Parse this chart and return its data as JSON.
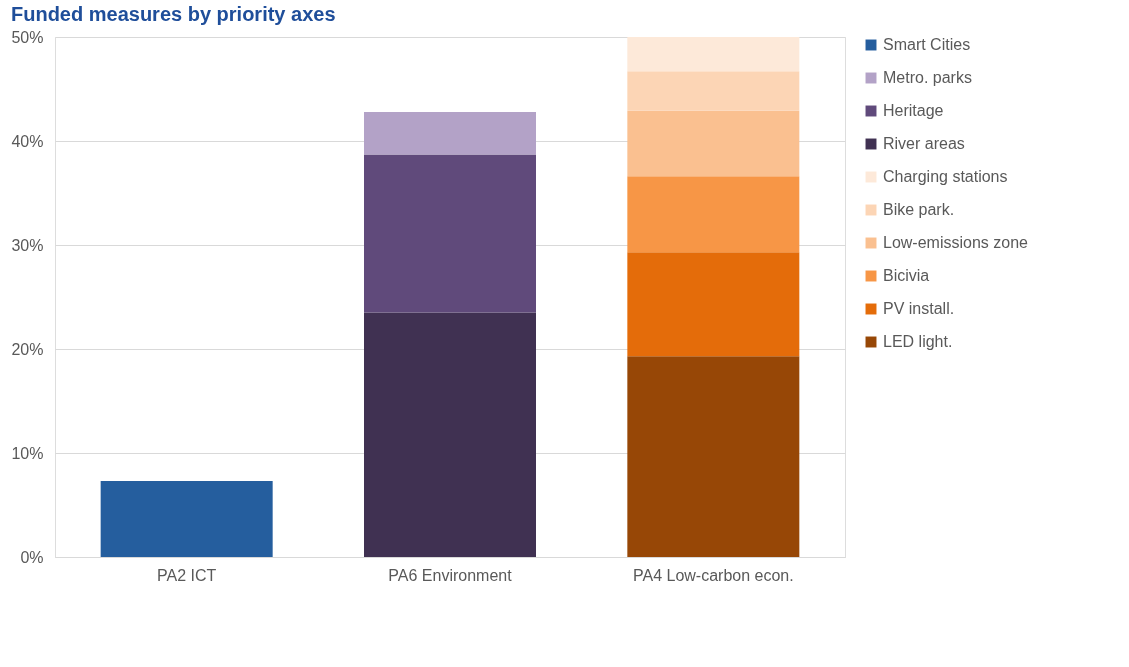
{
  "chart_data": {
    "type": "bar",
    "title": "Funded measures by priority axes",
    "stacked": true,
    "categories": [
      "PA2 ICT",
      "PA6 Environment",
      "PA4 Low-carbon econ."
    ],
    "series": [
      {
        "name": "LED light.",
        "color": "#974706",
        "values": [
          null,
          null,
          19.3
        ]
      },
      {
        "name": "PV install.",
        "color": "#e46c0a",
        "values": [
          null,
          null,
          10.0
        ]
      },
      {
        "name": "Bicivia",
        "color": "#f79646",
        "values": [
          null,
          null,
          7.3
        ]
      },
      {
        "name": "Low-emissions zone",
        "color": "#fac090",
        "values": [
          null,
          null,
          6.3
        ]
      },
      {
        "name": "Bike park.",
        "color": "#fcd5b5",
        "values": [
          null,
          null,
          3.8
        ]
      },
      {
        "name": "Charging stations",
        "color": "#fde9d9",
        "values": [
          null,
          null,
          3.3
        ]
      },
      {
        "name": "River areas",
        "color": "#403152",
        "values": [
          null,
          23.5,
          null
        ]
      },
      {
        "name": "Heritage",
        "color": "#604a7b",
        "values": [
          null,
          15.2,
          null
        ]
      },
      {
        "name": "Metro. parks",
        "color": "#b3a2c7",
        "values": [
          null,
          4.1,
          null
        ]
      },
      {
        "name": "Smart Cities",
        "color": "#255e9e",
        "values": [
          7.3,
          null,
          null
        ]
      }
    ],
    "ylim": [
      0,
      50
    ],
    "yticks": [
      {
        "value": 0,
        "label": "0%"
      },
      {
        "value": 10,
        "label": "10%"
      },
      {
        "value": 20,
        "label": "20%"
      },
      {
        "value": 30,
        "label": "30%"
      },
      {
        "value": 40,
        "label": "40%"
      },
      {
        "value": 50,
        "label": "50%"
      }
    ],
    "grid": "y",
    "legend": "right"
  }
}
